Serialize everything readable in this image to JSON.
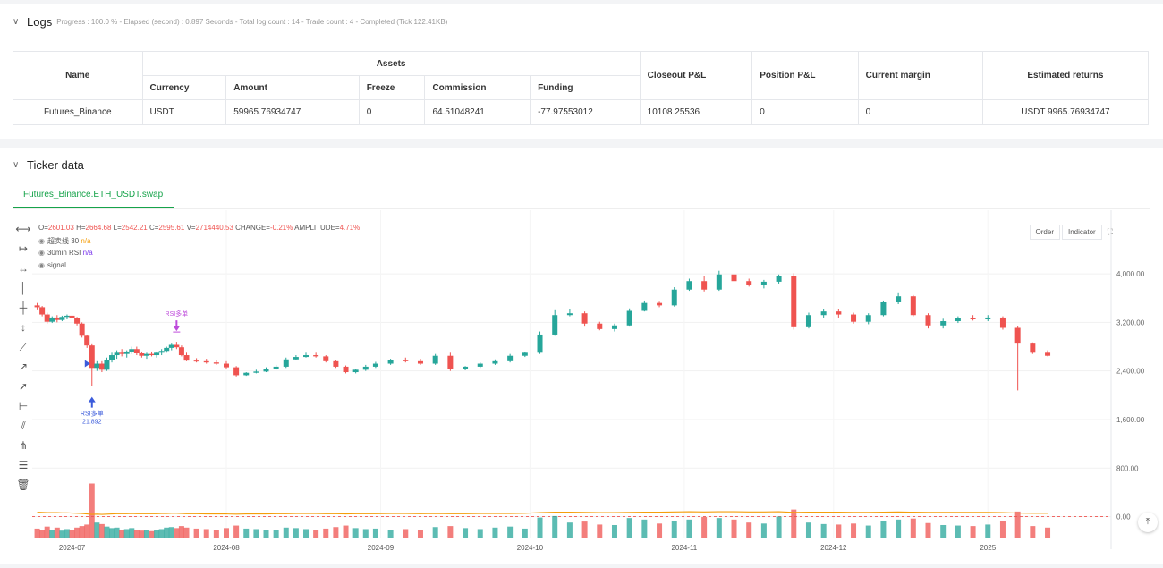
{
  "logs": {
    "title": "Logs",
    "progress": "Progress : 100.0 % - Elapsed (second) : 0.897 Seconds - Total log count : 14 - Trade count : 4 - Completed (Tick 122.41KB)"
  },
  "assets_table": {
    "headers": {
      "name": "Name",
      "assets": "Assets",
      "closeout": "Closeout P&L",
      "position": "Position P&L",
      "margin": "Current margin",
      "returns": "Estimated returns",
      "currency": "Currency",
      "amount": "Amount",
      "freeze": "Freeze",
      "commission": "Commission",
      "funding": "Funding"
    },
    "row": {
      "name": "Futures_Binance",
      "currency": "USDT",
      "amount": "59965.76934747",
      "freeze": "0",
      "commission": "64.51048241",
      "funding": "-77.97553012",
      "closeout": "10108.25536",
      "position": "0",
      "margin": "0",
      "returns": "USDT 9965.76934747"
    }
  },
  "ticker": {
    "title": "Ticker data",
    "tab": "Futures_Binance.ETH_USDT.swap",
    "ohlc": {
      "o_label": "O=",
      "o": "2601.03",
      "h_label": "H=",
      "h": "2664.68",
      "l_label": "L=",
      "l": "2542.21",
      "c_label": "C=",
      "c": "2595.61",
      "v_label": "V=",
      "v": "2714440.53",
      "change_label": "CHANGE=",
      "change": "-0.21%",
      "amp_label": "AMPLITUDE=",
      "amp": "4.71%"
    },
    "legend": [
      {
        "name": "超卖线 30",
        "value": "n/a"
      },
      {
        "name": "30min RSI",
        "value": "n/a"
      },
      {
        "name": "signal",
        "value": ""
      }
    ],
    "buttons": {
      "order": "Order",
      "indicator": "Indicator",
      "expand": "⛶"
    },
    "scroll_top": "⤒"
  },
  "toolbar_icons": [
    "horizontal-line-icon",
    "horizontal-ray-icon",
    "extended-line-icon",
    "vertical-line-icon",
    "price-line-icon",
    "vertical-range-icon",
    "trend-line-icon",
    "ray-icon",
    "arrow-line-icon",
    "price-range-icon",
    "parallel-channel-icon",
    "pitchfork-icon",
    "fib-retracement-icon",
    "trash-icon"
  ],
  "chart_data": {
    "type": "candlestick",
    "title": "",
    "y_ticks": [
      0,
      800,
      1600,
      2400,
      3200,
      4000
    ],
    "y_tick_labels": [
      "0.00",
      "800.00",
      "1,600.00",
      "2,400.00",
      "3,200.00",
      "4,000.00"
    ],
    "ylim": [
      -360,
      4900
    ],
    "x_tick_labels": [
      "2024-07",
      "2024-08",
      "2024-09",
      "2024-10",
      "2024-11",
      "2024-12",
      "2025"
    ],
    "x_tick_dates": [
      "2024-07-01",
      "2024-08-01",
      "2024-09-01",
      "2024-10-01",
      "2024-11-01",
      "2024-12-01",
      "2025-01-01"
    ],
    "dates": [
      "2024-06-24",
      "2024-06-25",
      "2024-06-26",
      "2024-06-27",
      "2024-06-28",
      "2024-06-29",
      "2024-06-30",
      "2024-07-01",
      "2024-07-02",
      "2024-07-03",
      "2024-07-04",
      "2024-07-05",
      "2024-07-06",
      "2024-07-07",
      "2024-07-08",
      "2024-07-09",
      "2024-07-10",
      "2024-07-11",
      "2024-07-12",
      "2024-07-13",
      "2024-07-14",
      "2024-07-15",
      "2024-07-16",
      "2024-07-17",
      "2024-07-18",
      "2024-07-19",
      "2024-07-20",
      "2024-07-21",
      "2024-07-22",
      "2024-07-23",
      "2024-07-24",
      "2024-07-26",
      "2024-07-28",
      "2024-07-30",
      "2024-08-01",
      "2024-08-03",
      "2024-08-05",
      "2024-08-07",
      "2024-08-09",
      "2024-08-11",
      "2024-08-13",
      "2024-08-15",
      "2024-08-17",
      "2024-08-19",
      "2024-08-21",
      "2024-08-23",
      "2024-08-25",
      "2024-08-27",
      "2024-08-29",
      "2024-08-31",
      "2024-09-03",
      "2024-09-06",
      "2024-09-09",
      "2024-09-12",
      "2024-09-15",
      "2024-09-18",
      "2024-09-21",
      "2024-09-24",
      "2024-09-27",
      "2024-09-30",
      "2024-10-03",
      "2024-10-06",
      "2024-10-09",
      "2024-10-12",
      "2024-10-15",
      "2024-10-18",
      "2024-10-21",
      "2024-10-24",
      "2024-10-27",
      "2024-10-30",
      "2024-11-02",
      "2024-11-05",
      "2024-11-08",
      "2024-11-11",
      "2024-11-14",
      "2024-11-17",
      "2024-11-20",
      "2024-11-23",
      "2024-11-26",
      "2024-11-29",
      "2024-12-02",
      "2024-12-05",
      "2024-12-08",
      "2024-12-11",
      "2024-12-14",
      "2024-12-17",
      "2024-12-20",
      "2024-12-23",
      "2024-12-26",
      "2024-12-29",
      "2025-01-01",
      "2025-01-04",
      "2025-01-07",
      "2025-01-10",
      "2025-01-13"
    ],
    "open": [
      3480,
      3450,
      3330,
      3210,
      3280,
      3240,
      3290,
      3310,
      3270,
      3180,
      2980,
      2820,
      2450,
      2520,
      2420,
      2580,
      2660,
      2700,
      2680,
      2720,
      2760,
      2690,
      2650,
      2680,
      2660,
      2700,
      2730,
      2780,
      2830,
      2790,
      2660,
      2570,
      2560,
      2540,
      2520,
      2460,
      2330,
      2370,
      2390,
      2430,
      2470,
      2590,
      2630,
      2660,
      2640,
      2560,
      2470,
      2380,
      2420,
      2470,
      2520,
      2580,
      2560,
      2520,
      2650,
      2430,
      2470,
      2520,
      2560,
      2650,
      2700,
      3000,
      3320,
      3350,
      3180,
      3090,
      3150,
      3390,
      3520,
      3480,
      3740,
      3880,
      3740,
      3990,
      3880,
      3810,
      3870,
      3960,
      3120,
      3320,
      3380,
      3330,
      3210,
      3320,
      3530,
      3630,
      3320,
      3150,
      3220,
      3270,
      3250,
      3280,
      3110,
      2850,
      2700
    ],
    "high": [
      3520,
      3470,
      3360,
      3300,
      3320,
      3310,
      3330,
      3340,
      3290,
      3200,
      3000,
      2840,
      2560,
      2560,
      2620,
      2700,
      2740,
      2760,
      2740,
      2800,
      2800,
      2720,
      2700,
      2720,
      2720,
      2760,
      2800,
      2850,
      2880,
      2820,
      2700,
      2610,
      2600,
      2580,
      2560,
      2480,
      2380,
      2420,
      2460,
      2500,
      2620,
      2660,
      2700,
      2700,
      2660,
      2580,
      2490,
      2430,
      2500,
      2550,
      2600,
      2620,
      2600,
      2680,
      2700,
      2480,
      2540,
      2590,
      2680,
      2720,
      3050,
      3400,
      3420,
      3380,
      3210,
      3180,
      3430,
      3560,
      3540,
      3780,
      3920,
      3960,
      4050,
      4060,
      3920,
      3900,
      3990,
      4010,
      3360,
      3420,
      3420,
      3360,
      3350,
      3560,
      3680,
      3650,
      3350,
      3260,
      3300,
      3320,
      3320,
      3300,
      3140,
      2870,
      2740
    ],
    "low": [
      3400,
      3300,
      3180,
      3190,
      3200,
      3220,
      3250,
      3250,
      3150,
      2950,
      2780,
      2150,
      2400,
      2380,
      2400,
      2540,
      2600,
      2640,
      2620,
      2680,
      2660,
      2620,
      2600,
      2640,
      2620,
      2660,
      2700,
      2740,
      2760,
      2640,
      2560,
      2540,
      2520,
      2500,
      2440,
      2310,
      2320,
      2360,
      2380,
      2420,
      2450,
      2580,
      2620,
      2620,
      2540,
      2450,
      2360,
      2360,
      2400,
      2450,
      2500,
      2540,
      2500,
      2500,
      2400,
      2410,
      2450,
      2500,
      2540,
      2630,
      2680,
      2980,
      3300,
      3130,
      3070,
      3050,
      3130,
      3380,
      3450,
      3460,
      3720,
      3710,
      3720,
      3850,
      3790,
      3760,
      3840,
      3080,
      3100,
      3280,
      3280,
      3180,
      3170,
      3300,
      3500,
      3300,
      3100,
      3100,
      3190,
      3230,
      3220,
      3080,
      2080,
      2680,
      2640
    ],
    "close": [
      3450,
      3330,
      3210,
      3280,
      3240,
      3290,
      3310,
      3270,
      3180,
      2980,
      2820,
      2450,
      2520,
      2420,
      2580,
      2660,
      2700,
      2680,
      2720,
      2760,
      2690,
      2650,
      2680,
      2660,
      2700,
      2730,
      2780,
      2830,
      2790,
      2660,
      2570,
      2560,
      2540,
      2520,
      2460,
      2330,
      2370,
      2390,
      2430,
      2470,
      2590,
      2630,
      2660,
      2640,
      2560,
      2470,
      2380,
      2420,
      2470,
      2520,
      2580,
      2560,
      2520,
      2650,
      2430,
      2470,
      2520,
      2560,
      2650,
      2700,
      3000,
      3320,
      3350,
      3180,
      3090,
      3150,
      3390,
      3520,
      3480,
      3740,
      3880,
      3740,
      3990,
      3880,
      3810,
      3870,
      3960,
      3120,
      3320,
      3380,
      3330,
      3210,
      3320,
      3530,
      3630,
      3320,
      3150,
      3220,
      3270,
      3250,
      3280,
      3110,
      2850,
      2700,
      2650
    ],
    "volume": [
      180,
      150,
      220,
      160,
      200,
      140,
      170,
      150,
      200,
      230,
      260,
      1080,
      300,
      270,
      220,
      190,
      200,
      160,
      170,
      190,
      160,
      140,
      150,
      130,
      160,
      170,
      200,
      210,
      190,
      230,
      200,
      180,
      170,
      160,
      190,
      240,
      180,
      170,
      160,
      150,
      200,
      190,
      170,
      160,
      180,
      210,
      240,
      190,
      170,
      180,
      160,
      170,
      150,
      210,
      230,
      190,
      170,
      200,
      220,
      180,
      400,
      430,
      300,
      320,
      260,
      250,
      390,
      360,
      280,
      330,
      360,
      410,
      390,
      360,
      300,
      280,
      420,
      560,
      300,
      270,
      260,
      280,
      240,
      330,
      360,
      380,
      290,
      250,
      240,
      230,
      260,
      330,
      520,
      230,
      200
    ],
    "series": [
      {
        "name": "30min RSI",
        "color": "#f59e0b",
        "values": [
          62,
          61,
          60,
          60,
          60,
          59,
          59,
          58,
          57,
          56,
          54,
          52,
          53,
          52,
          53,
          54,
          55,
          55,
          55,
          56,
          55,
          55,
          55,
          55,
          55,
          56,
          56,
          57,
          57,
          56,
          55,
          55,
          54,
          54,
          54,
          53,
          54,
          54,
          54,
          55,
          55,
          56,
          56,
          56,
          55,
          55,
          54,
          55,
          55,
          55,
          56,
          56,
          55,
          56,
          55,
          55,
          56,
          56,
          56,
          57,
          60,
          62,
          62,
          61,
          60,
          60,
          61,
          62,
          62,
          63,
          64,
          63,
          64,
          64,
          63,
          63,
          64,
          61,
          62,
          62,
          62,
          61,
          61,
          62,
          63,
          62,
          61,
          61,
          61,
          61,
          61,
          60,
          58,
          57,
          57
        ]
      }
    ],
    "annotations": [
      {
        "label": "RSI多单",
        "value": "21.892",
        "date": "2024-07-05",
        "type": "buy"
      },
      {
        "label": "RSI多单",
        "date": "2024-07-22",
        "type": "exit"
      }
    ],
    "colors": {
      "up": "#26a69a",
      "down": "#ef5350",
      "rsi": "#f59e0b",
      "buy": "#3b5bdb",
      "exit": "#be4bdb"
    }
  }
}
